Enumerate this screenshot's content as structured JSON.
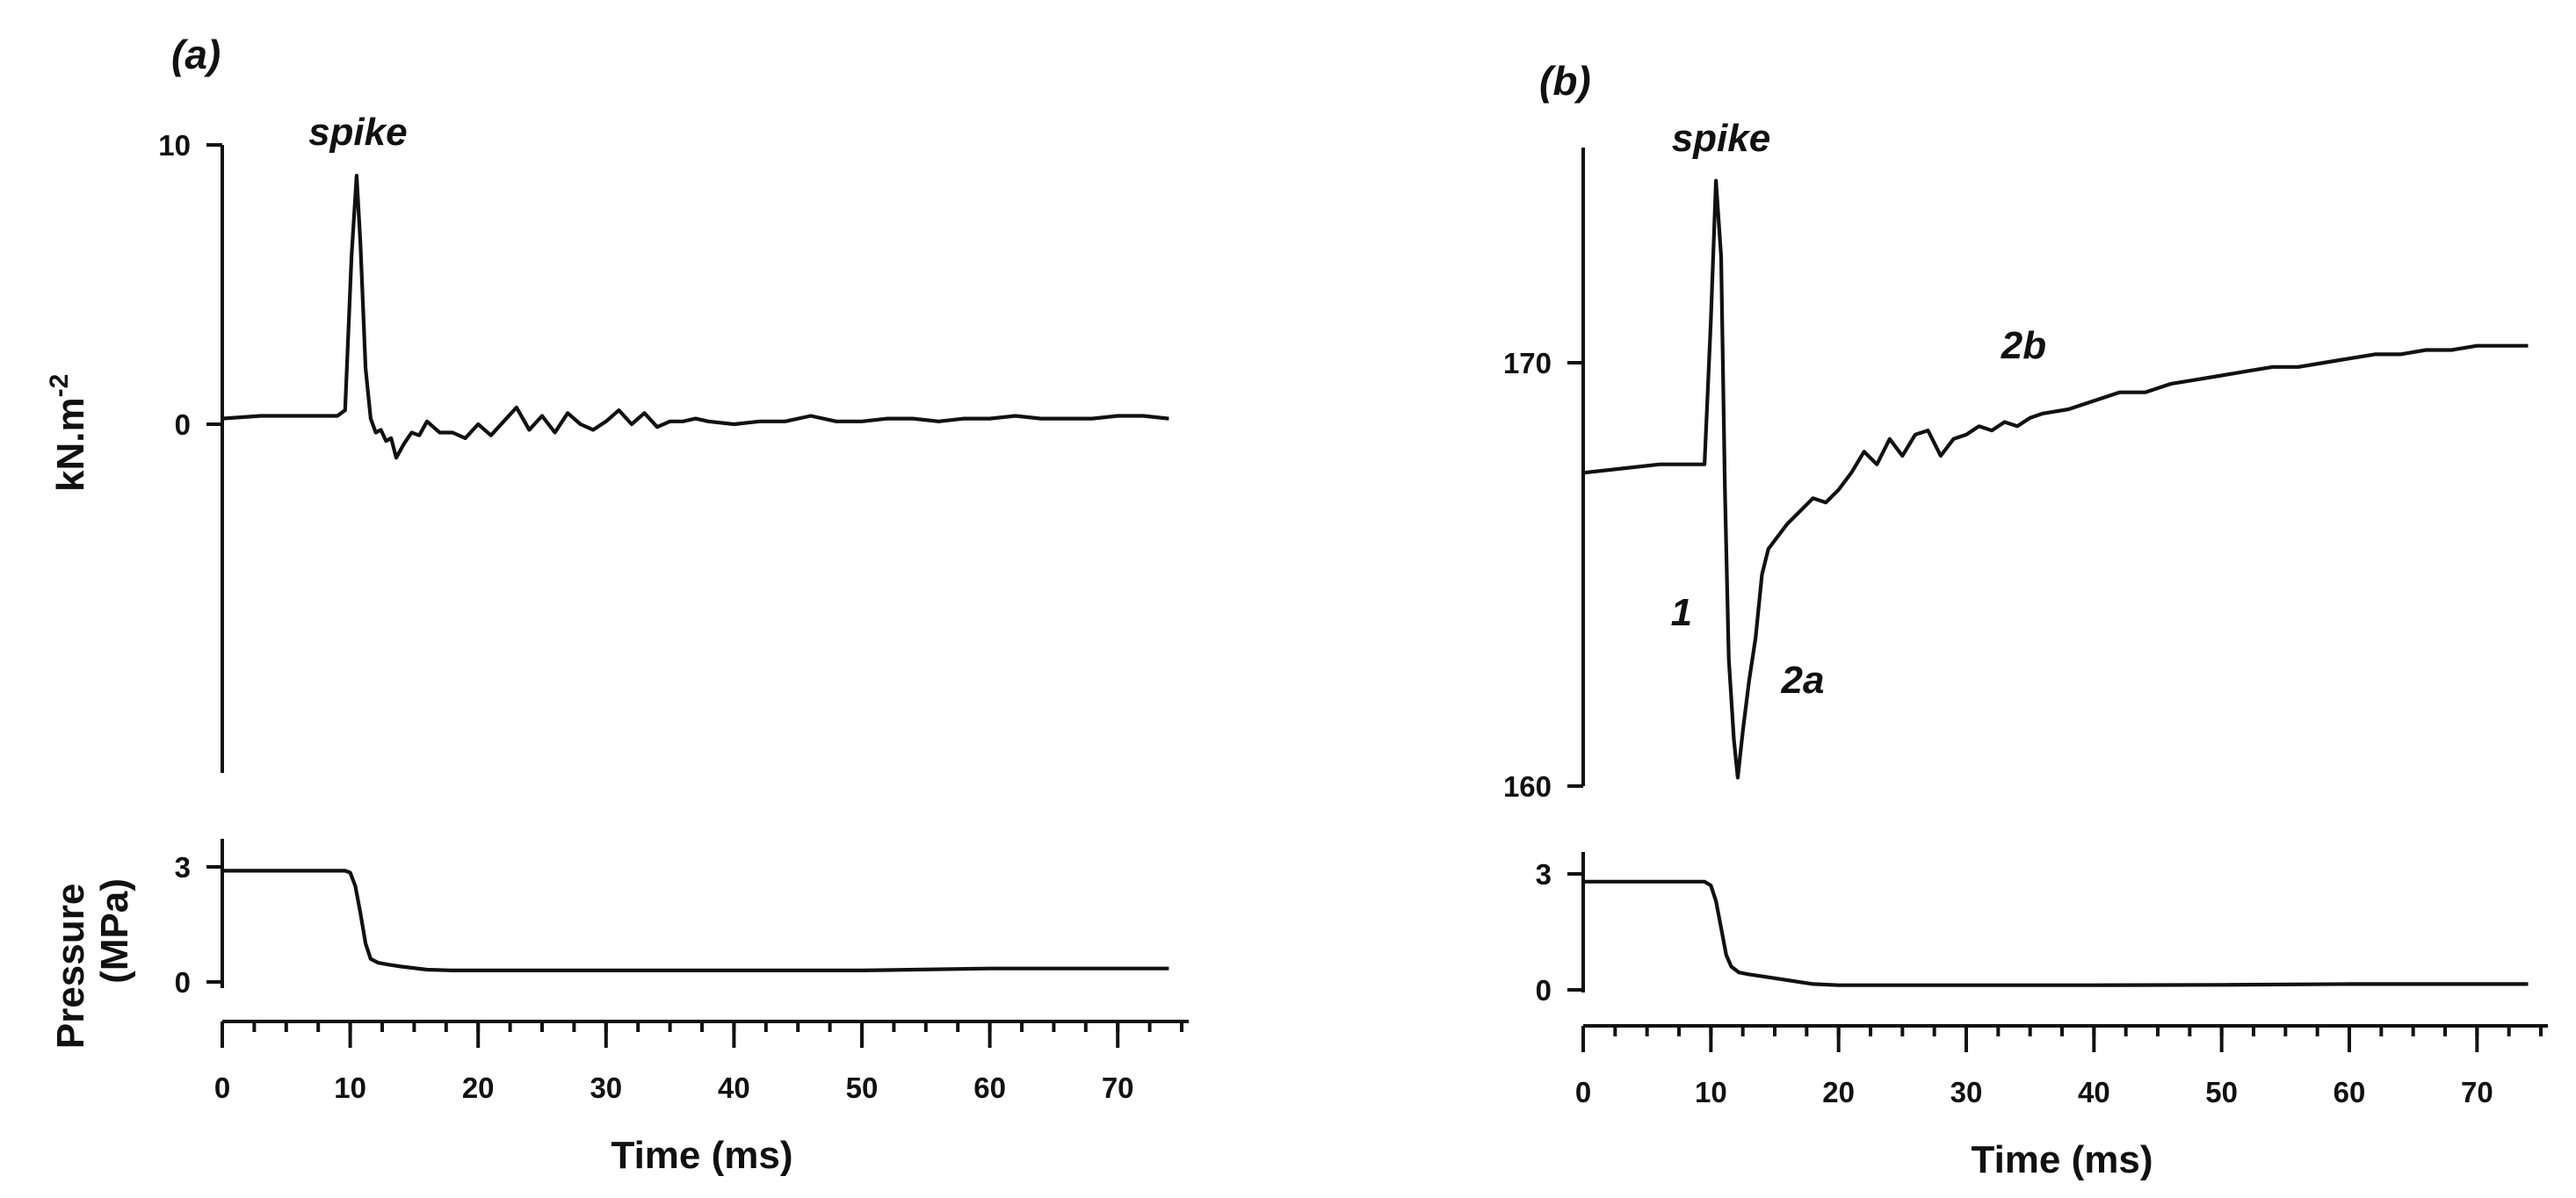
{
  "chart_data": [
    {
      "panel": "(a)",
      "type": "line",
      "top": {
        "ylabel": "kN.m",
        "ylabel_sup": "-2",
        "yticks": [
          0,
          10
        ],
        "ylim": [
          -5,
          10
        ],
        "annotations": [
          {
            "text": "spike",
            "x": 10.6,
            "y": 10
          }
        ],
        "series": [
          {
            "x": [
              0,
              3,
              6,
              9,
              9.6,
              10.1,
              10.5,
              10.8,
              11.2,
              11.6,
              12.0,
              12.4,
              12.8,
              13.2,
              13.6,
              14.2,
              14.8,
              15.4,
              16.0,
              17,
              18,
              19,
              20,
              21,
              22,
              23,
              24,
              25,
              26,
              27,
              28,
              29,
              30,
              31,
              32,
              33,
              34,
              35,
              36,
              37,
              38,
              40,
              42,
              44,
              46,
              48,
              50,
              52,
              54,
              56,
              58,
              60,
              62,
              64,
              66,
              68,
              70,
              72,
              74
            ],
            "y": [
              0.2,
              0.3,
              0.3,
              0.3,
              0.5,
              6.0,
              8.9,
              6.5,
              2.0,
              0.2,
              -0.3,
              -0.2,
              -0.6,
              -0.5,
              -1.2,
              -0.7,
              -0.3,
              -0.4,
              0.1,
              -0.3,
              -0.3,
              -0.5,
              0.0,
              -0.4,
              0.1,
              0.6,
              -0.2,
              0.3,
              -0.3,
              0.4,
              0.0,
              -0.2,
              0.1,
              0.5,
              0.0,
              0.4,
              -0.1,
              0.1,
              0.1,
              0.2,
              0.1,
              0.0,
              0.1,
              0.1,
              0.3,
              0.1,
              0.1,
              0.2,
              0.2,
              0.1,
              0.2,
              0.2,
              0.3,
              0.2,
              0.2,
              0.2,
              0.3,
              0.3,
              0.2
            ]
          }
        ]
      },
      "bottom": {
        "ylabel": "Pressure (MPa)",
        "yticks": [
          0,
          3
        ],
        "ylim": [
          0,
          3
        ],
        "series": [
          {
            "x": [
              0,
              5,
              9.6,
              10.0,
              10.4,
              10.8,
              11.2,
              11.6,
              12.2,
              13,
              14,
              16,
              18,
              20,
              30,
              40,
              50,
              60,
              70,
              74
            ],
            "y": [
              2.9,
              2.9,
              2.9,
              2.85,
              2.5,
              1.8,
              1.0,
              0.6,
              0.5,
              0.45,
              0.4,
              0.32,
              0.3,
              0.3,
              0.3,
              0.3,
              0.3,
              0.35,
              0.35,
              0.35
            ]
          }
        ]
      },
      "xlabel": "Time (ms)",
      "xticks": [
        0,
        10,
        20,
        30,
        40,
        50,
        60,
        70
      ],
      "xlim": [
        0,
        75
      ]
    },
    {
      "panel": "(b)",
      "type": "line",
      "top": {
        "ylabel": "",
        "yticks": [
          160,
          170
        ],
        "ylim": [
          160,
          175
        ],
        "annotations": [
          {
            "text": "spike",
            "x": 10.8,
            "y": 175.0
          },
          {
            "text": "2b",
            "x": 34.5,
            "y": 170.1
          },
          {
            "text": "1",
            "x": 7.7,
            "y": 163.8
          },
          {
            "text": "2a",
            "x": 17.2,
            "y": 162.2
          }
        ],
        "series": [
          {
            "x": [
              0,
              3,
              6,
              8,
              9.5,
              10.0,
              10.4,
              10.8,
              11.1,
              11.4,
              11.8,
              12.1,
              12.5,
              13.0,
              13.5,
              14,
              14.5,
              15,
              16,
              17,
              18,
              19,
              20,
              21,
              22,
              23,
              24,
              25,
              26,
              27,
              28,
              29,
              30,
              31,
              32,
              33,
              34,
              35,
              36,
              38,
              40,
              42,
              44,
              46,
              48,
              50,
              52,
              54,
              56,
              58,
              60,
              62,
              64,
              66,
              68,
              70,
              72,
              74
            ],
            "y": [
              167.4,
              167.5,
              167.6,
              167.6,
              167.6,
              171.0,
              174.3,
              172.5,
              167.0,
              163.0,
              161.1,
              160.2,
              161.3,
              162.5,
              163.5,
              165.0,
              165.6,
              165.8,
              166.2,
              166.5,
              166.8,
              166.7,
              167.0,
              167.4,
              167.9,
              167.6,
              168.2,
              167.8,
              168.3,
              168.4,
              167.8,
              168.2,
              168.3,
              168.5,
              168.4,
              168.6,
              168.5,
              168.7,
              168.8,
              168.9,
              169.1,
              169.3,
              169.3,
              169.5,
              169.6,
              169.7,
              169.8,
              169.9,
              169.9,
              170.0,
              170.1,
              170.2,
              170.2,
              170.3,
              170.3,
              170.4,
              170.4,
              170.4
            ]
          }
        ]
      },
      "bottom": {
        "ylabel": "",
        "yticks": [
          0,
          3
        ],
        "ylim": [
          0,
          3
        ],
        "series": [
          {
            "x": [
              0,
              5,
              9.5,
              10.0,
              10.4,
              10.8,
              11.2,
              11.6,
              12.2,
              13,
              14,
              16,
              18,
              20,
              30,
              40,
              50,
              60,
              70,
              74
            ],
            "y": [
              2.8,
              2.8,
              2.8,
              2.7,
              2.3,
              1.6,
              0.9,
              0.6,
              0.45,
              0.4,
              0.35,
              0.25,
              0.15,
              0.12,
              0.12,
              0.12,
              0.13,
              0.15,
              0.15,
              0.15
            ]
          }
        ]
      },
      "xlabel": "Time (ms)",
      "xticks": [
        0,
        10,
        20,
        30,
        40,
        50,
        60,
        70
      ],
      "xlim": [
        0,
        75
      ]
    }
  ]
}
